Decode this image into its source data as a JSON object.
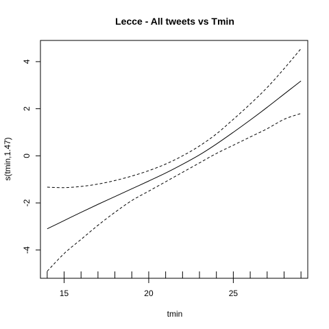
{
  "chart_data": {
    "type": "line",
    "title": "Lecce - All tweets vs Tmin",
    "xlabel": "tmin",
    "ylabel": "s(tmin,1.47)",
    "xlim": [
      13.6,
      29.4
    ],
    "ylim": [
      -5.2,
      4.9
    ],
    "x_ticks": [
      15,
      20,
      25
    ],
    "y_ticks": [
      -4,
      -2,
      0,
      2,
      4
    ],
    "grid": false,
    "series": [
      {
        "style": "solid",
        "x": [
          14,
          15,
          16,
          17,
          18,
          19,
          20,
          21,
          22,
          23,
          24,
          25,
          26,
          27,
          28,
          29
        ],
        "y": [
          -3.1,
          -2.75,
          -2.4,
          -2.06,
          -1.73,
          -1.4,
          -1.07,
          -0.73,
          -0.36,
          0.04,
          0.5,
          1.0,
          1.52,
          2.06,
          2.62,
          3.18
        ]
      },
      {
        "style": "dashed",
        "x": [
          14,
          15,
          16,
          17,
          18,
          19,
          20,
          21,
          22,
          23,
          24,
          25,
          26,
          27,
          28,
          29
        ],
        "y": [
          -1.33,
          -1.35,
          -1.3,
          -1.2,
          -1.05,
          -0.86,
          -0.63,
          -0.35,
          0.0,
          0.42,
          0.93,
          1.55,
          2.2,
          2.9,
          3.7,
          4.55
        ]
      },
      {
        "style": "dashed",
        "x": [
          14,
          15,
          16,
          17,
          18,
          19,
          20,
          21,
          22,
          23,
          24,
          25,
          26,
          27,
          28,
          29
        ],
        "y": [
          -4.9,
          -4.15,
          -3.55,
          -2.95,
          -2.4,
          -1.9,
          -1.5,
          -1.1,
          -0.7,
          -0.3,
          0.1,
          0.45,
          0.8,
          1.15,
          1.55,
          1.8
        ]
      }
    ],
    "rug": [
      14,
      15,
      16,
      17,
      18,
      19,
      20,
      21,
      22,
      23,
      24,
      25,
      26,
      27,
      28,
      29
    ]
  }
}
